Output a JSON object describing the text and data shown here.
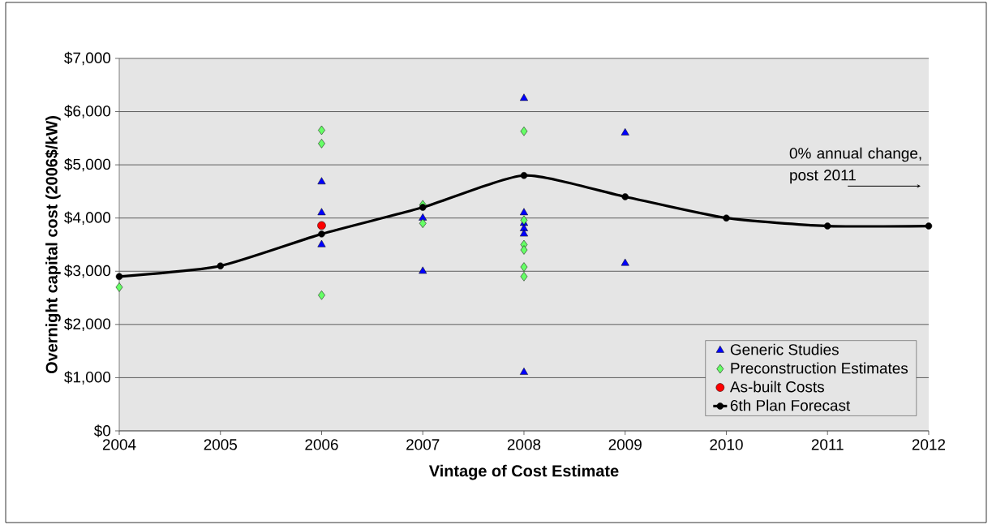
{
  "chart_data": {
    "type": "scatter",
    "xlabel": "Vintage of Cost Estimate",
    "ylabel": "Overnight capital cost (2006$/kW)",
    "xlim": [
      2004,
      2012
    ],
    "xticks": [
      2004,
      2005,
      2006,
      2007,
      2008,
      2009,
      2010,
      2011,
      2012
    ],
    "ylim": [
      0,
      7000
    ],
    "yticks": [
      {
        "value": 0,
        "label": "$0"
      },
      {
        "value": 1000,
        "label": "$1,000"
      },
      {
        "value": 2000,
        "label": "$2,000"
      },
      {
        "value": 3000,
        "label": "$3,000"
      },
      {
        "value": 4000,
        "label": "$4,000"
      },
      {
        "value": 5000,
        "label": "$5,000"
      },
      {
        "value": 6000,
        "label": "$6,000"
      },
      {
        "value": 7000,
        "label": "$7,000"
      }
    ],
    "grid": "y",
    "legend": "bottom right",
    "annotations": [
      "0% annual change, post 2011"
    ],
    "series": [
      {
        "name": "Generic Studies",
        "marker": "triangle",
        "color": "#0000ff",
        "x": [
          2006,
          2006,
          2006,
          2007,
          2007,
          2008,
          2008,
          2008,
          2008,
          2008,
          2008,
          2009,
          2009
        ],
        "values": [
          4680,
          4100,
          3500,
          4000,
          3000,
          6250,
          4100,
          3900,
          3800,
          3700,
          1100,
          5600,
          3150
        ]
      },
      {
        "name": "Preconstruction Estimates",
        "marker": "diamond",
        "color": "#66ff66",
        "x": [
          2004,
          2006,
          2006,
          2006,
          2007,
          2007,
          2008,
          2008,
          2008,
          2008,
          2008,
          2008
        ],
        "values": [
          2700,
          5650,
          5400,
          2550,
          4250,
          3900,
          5630,
          3960,
          3500,
          3400,
          3080,
          2900
        ]
      },
      {
        "name": "As-built Costs",
        "marker": "circle",
        "color": "#ff0000",
        "x": [
          2006
        ],
        "values": [
          3860
        ]
      },
      {
        "name": "6th Plan Forecast",
        "type": "line",
        "marker": "circle",
        "color": "#000000",
        "x": [
          2004,
          2005,
          2006,
          2007,
          2008,
          2009,
          2010,
          2011,
          2012
        ],
        "values": [
          2900,
          3100,
          3700,
          4200,
          4800,
          4400,
          4000,
          3850,
          3850
        ]
      }
    ]
  }
}
